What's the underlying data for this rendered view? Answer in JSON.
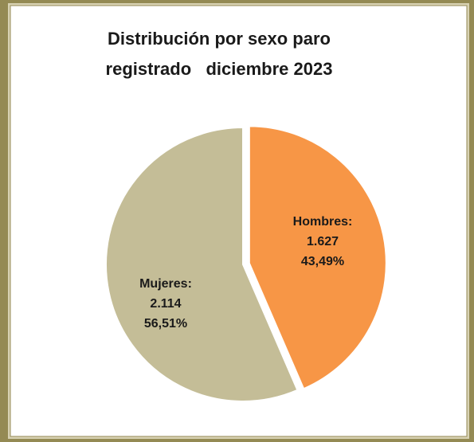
{
  "chart_data": {
    "type": "pie",
    "title": [
      "Distribución por sexo paro",
      "registrado   diciembre 2023"
    ],
    "categories": [
      "Hombres:",
      "Mujeres:"
    ],
    "values": [
      1627,
      2114
    ],
    "value_labels": [
      "1.627",
      "2.114"
    ],
    "percentages": [
      43.49,
      56.51
    ],
    "percentage_labels": [
      "43,49%",
      "56,51%"
    ],
    "colors": [
      "#f79646",
      "#c4bd97"
    ]
  }
}
